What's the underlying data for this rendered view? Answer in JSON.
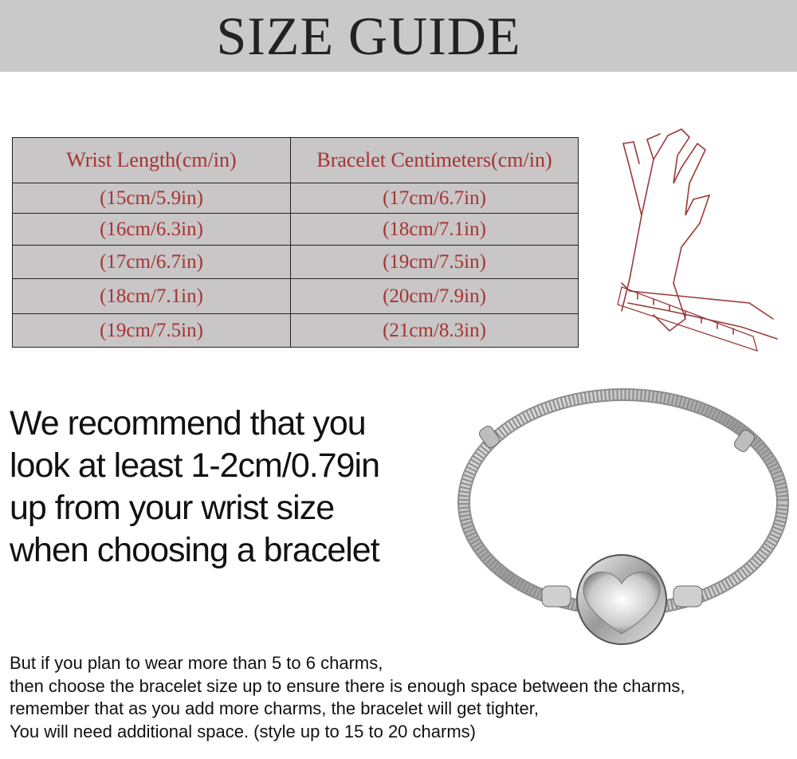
{
  "title": "SIZE GUIDE",
  "table": {
    "headers": [
      "Wrist Length(cm/in)",
      "Bracelet Centimeters(cm/in)"
    ],
    "rows": [
      [
        "(15cm/5.9in)",
        "(17cm/6.7in)"
      ],
      [
        "(16cm/6.3in)",
        "(18cm/7.1in)"
      ],
      [
        "(17cm/6.7in)",
        "(19cm/7.5in)"
      ],
      [
        "(18cm/7.1in)",
        "(20cm/7.9in)"
      ],
      [
        "(19cm/7.5in)",
        "(21cm/8.3in)"
      ]
    ]
  },
  "recommendation": [
    "We recommend that you",
    "look at least 1-2cm/0.79in",
    "up from your wrist size",
    "when choosing a bracelet"
  ],
  "note": [
    "But if you plan to wear more than 5 to 6 charms,",
    "then choose the bracelet size up to ensure there is enough space between the charms,",
    "remember that as you add more charms, the bracelet will get tighter,",
    "You will need additional space. (style up to 15 to 20 charms)"
  ],
  "colors": {
    "banner": "#c9c9c9",
    "table_bg": "#c8c6c6",
    "table_text": "#a83232"
  },
  "images": [
    "hand-measuring-wrist-sketch",
    "silver-snake-chain-bracelet-heart-clasp"
  ]
}
